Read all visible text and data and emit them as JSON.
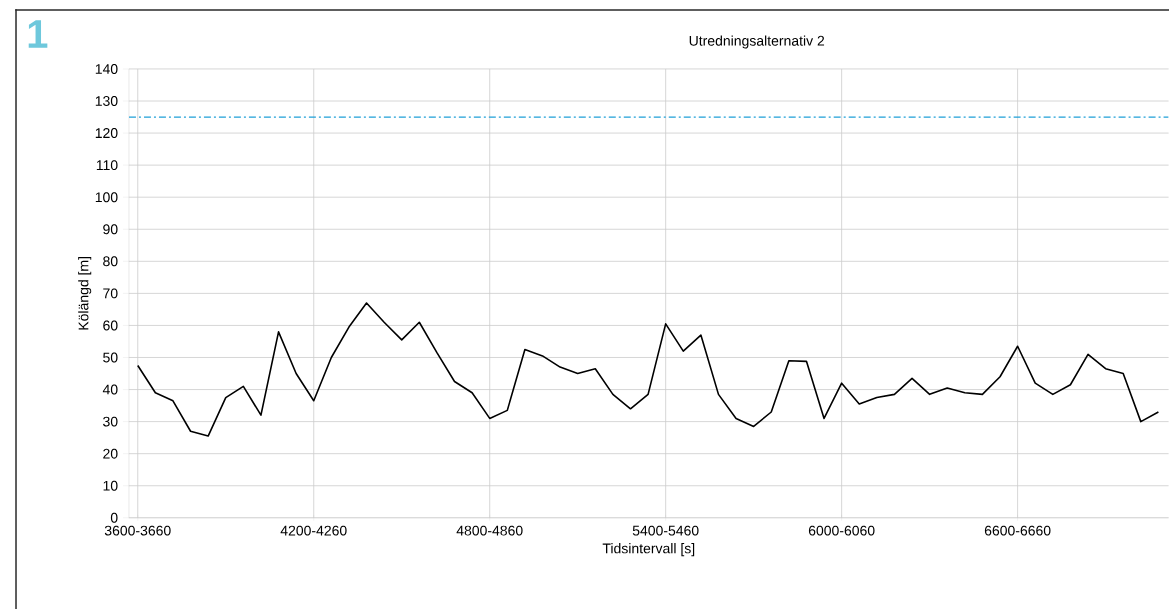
{
  "chart_data": {
    "type": "line",
    "title": "Utredningsalternativ 2",
    "xlabel": "Tidsintervall [s]",
    "ylabel": "Kölängd [m]",
    "annotations": [
      "1"
    ],
    "categories": [
      "3600-3660",
      null,
      null,
      null,
      null,
      null,
      null,
      null,
      null,
      null,
      "4200-4260",
      null,
      null,
      null,
      null,
      null,
      null,
      null,
      null,
      null,
      "4800-4860",
      null,
      null,
      null,
      null,
      null,
      null,
      null,
      null,
      null,
      "5400-5460",
      null,
      null,
      null,
      null,
      null,
      null,
      null,
      null,
      null,
      "6000-6060",
      null,
      null,
      null,
      null,
      null,
      null,
      null,
      null,
      null,
      "6600-6660",
      null,
      null,
      null,
      null,
      null,
      null,
      null,
      null
    ],
    "series": [
      {
        "color": "#000000",
        "values": [
          47.5,
          39,
          36.5,
          27,
          25.5,
          37.5,
          41,
          32,
          58,
          45,
          36.5,
          50,
          59.5,
          67,
          61,
          55.5,
          61,
          51.5,
          42.5,
          39,
          31,
          33.5,
          52.5,
          50.5,
          47,
          45,
          46.5,
          38.5,
          34,
          38.5,
          60.5,
          52,
          57,
          38.5,
          31,
          28.5,
          33,
          49,
          48.8,
          31,
          42,
          35.5,
          37.5,
          38.5,
          43.5,
          38.5,
          40.5,
          39,
          38.5,
          44,
          53.5,
          42,
          38.5,
          41.5,
          51,
          46.5,
          45,
          30,
          33
        ]
      }
    ],
    "ref_lines": [
      {
        "axis": "y",
        "value": 125,
        "color": "#1fa0d8",
        "line_style": "dashed"
      }
    ],
    "ylim": [
      0,
      140
    ],
    "yticks": [
      0,
      10,
      20,
      30,
      40,
      50,
      60,
      70,
      80,
      90,
      100,
      110,
      120,
      130,
      140
    ],
    "grid": true,
    "marker": "none",
    "line_style": "solid"
  }
}
